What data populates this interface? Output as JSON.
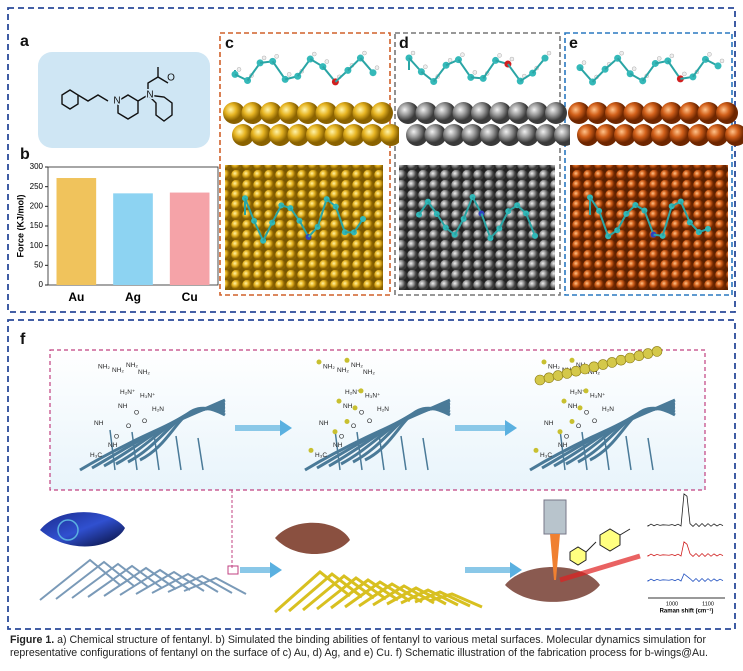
{
  "panel_labels": {
    "a": "a",
    "b": "b",
    "c": "c",
    "d": "d",
    "e": "e",
    "f": "f"
  },
  "structure_atoms": [
    "N",
    "N",
    "O"
  ],
  "chart_data": {
    "type": "bar",
    "ylabel": "Force (KJ/mol)",
    "categories": [
      "Au",
      "Ag",
      "Cu"
    ],
    "values": [
      272,
      233,
      235
    ],
    "colors": [
      "#f0c35c",
      "#8dd3f2",
      "#f5a3a8"
    ],
    "ylim": [
      0,
      300
    ],
    "yticks": [
      0,
      50,
      100,
      150,
      200,
      250,
      300
    ]
  },
  "f": {
    "chain_labels": [
      "NH₂",
      "NH₂",
      "NH₂",
      "NH₂",
      "NH",
      "H₂N⁺",
      "H₃N⁺",
      "NH",
      "O",
      "O",
      "O",
      "H₂N",
      "O",
      "NH",
      "H₃C"
    ],
    "raman": {
      "xlabel": "Raman shift (cm⁻¹)",
      "xticks": [
        "1000",
        "1100"
      ]
    }
  },
  "caption": {
    "label": "Figure 1.",
    "text": "a) Chemical structure of fentanyl. b) Simulated the binding abilities of fentanyl to various metal surfaces. Molecular dynamics simulation for representative configurations of fentanyl on the surface of c) Au, d) Ag, and e) Cu. f) Schematic illustration of the fabrication process for b-wings@Au."
  }
}
